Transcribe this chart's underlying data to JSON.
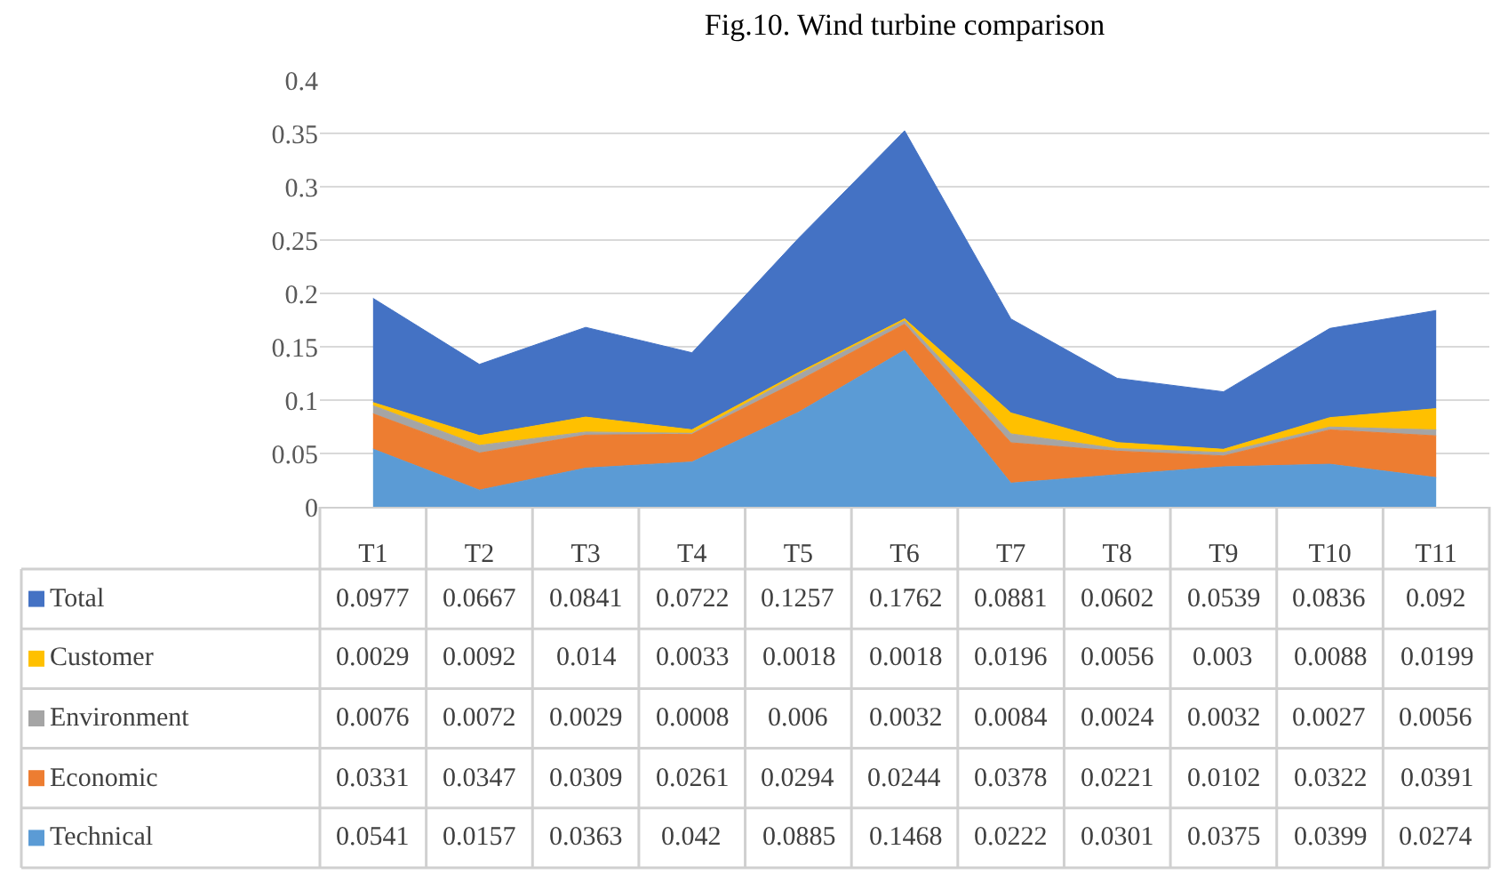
{
  "chart_data": {
    "type": "area",
    "stacked": true,
    "title": "Fig.10. Wind turbine comparison",
    "categories": [
      "T1",
      "T2",
      "T3",
      "T4",
      "T5",
      "T6",
      "T7",
      "T8",
      "T9",
      "T10",
      "T11"
    ],
    "series": [
      {
        "name": "Technical",
        "color": "#5b9bd5",
        "values": [
          0.0541,
          0.0157,
          0.0363,
          0.042,
          0.0885,
          0.1468,
          0.0222,
          0.0301,
          0.0375,
          0.0399,
          0.0274
        ]
      },
      {
        "name": "Economic",
        "color": "#ed7d31",
        "values": [
          0.0331,
          0.0347,
          0.0309,
          0.0261,
          0.0294,
          0.0244,
          0.0378,
          0.0221,
          0.0102,
          0.0322,
          0.0391
        ]
      },
      {
        "name": "Environment",
        "color": "#a5a5a5",
        "values": [
          0.0076,
          0.0072,
          0.0029,
          0.0008,
          0.006,
          0.0032,
          0.0084,
          0.0024,
          0.0032,
          0.0027,
          0.0056
        ]
      },
      {
        "name": "Customer",
        "color": "#ffc000",
        "values": [
          0.0029,
          0.0092,
          0.014,
          0.0033,
          0.0018,
          0.0018,
          0.0196,
          0.0056,
          0.003,
          0.0088,
          0.0199
        ]
      },
      {
        "name": "Total",
        "color": "#4472c4",
        "values": [
          0.0977,
          0.0667,
          0.0841,
          0.0722,
          0.1257,
          0.1762,
          0.0881,
          0.0602,
          0.0539,
          0.0836,
          0.092
        ]
      }
    ],
    "ylim": [
      0,
      0.4
    ],
    "yticks": [
      0,
      0.05,
      0.1,
      0.15,
      0.2,
      0.25,
      0.3,
      0.35,
      0.4
    ],
    "grid": "y",
    "legend": "bottom left",
    "data_labels": true
  }
}
